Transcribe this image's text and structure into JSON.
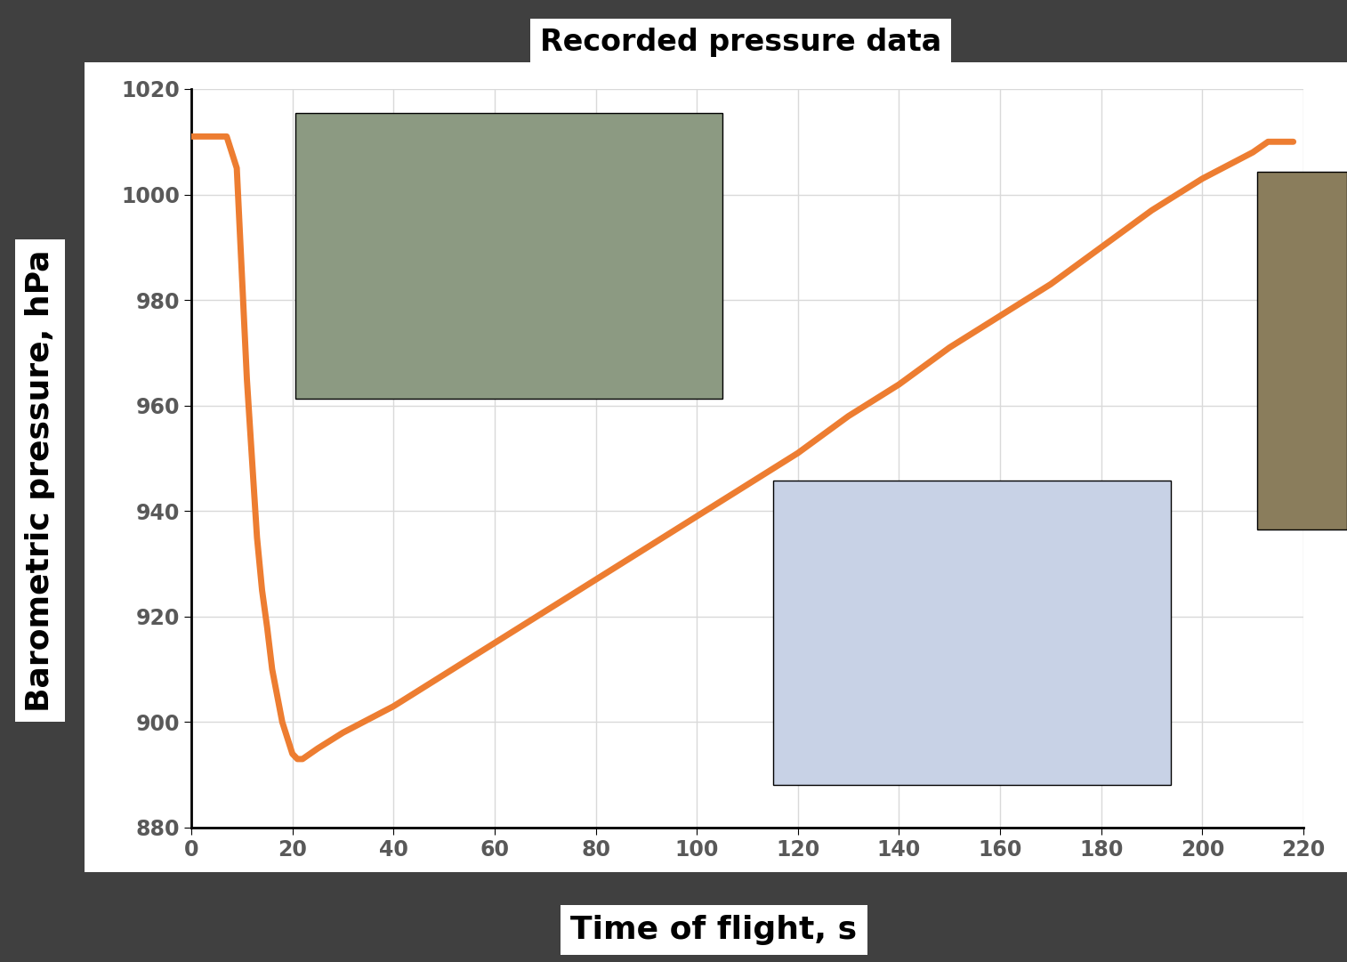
{
  "chart_data": {
    "type": "line",
    "title": "Recorded pressure data",
    "x_label": "Time of flight, s",
    "y_label": "Barometric pressure, hPa",
    "x": [
      0,
      6,
      7,
      8,
      9,
      10,
      11,
      12,
      13,
      14,
      15,
      16,
      17,
      18,
      19,
      20,
      21,
      22,
      25,
      30,
      40,
      50,
      60,
      70,
      80,
      90,
      100,
      110,
      120,
      130,
      140,
      150,
      160,
      170,
      180,
      190,
      200,
      210,
      213,
      218
    ],
    "series": [
      {
        "name": "Barometric pressure",
        "color": "#ed7d31",
        "line_style": "solid",
        "values": [
          1011,
          1011,
          1011,
          1008,
          1005,
          985,
          965,
          950,
          935,
          925,
          918,
          910,
          905,
          900,
          897,
          894,
          893,
          893,
          895,
          898,
          903,
          909,
          915,
          921,
          927,
          933,
          939,
          945,
          951,
          958,
          964,
          971,
          977,
          983,
          990,
          997,
          1003,
          1008,
          1010,
          1010
        ]
      }
    ],
    "xlim": [
      0,
      220
    ],
    "xticks": [
      0,
      20,
      40,
      60,
      80,
      100,
      120,
      140,
      160,
      180,
      200,
      220
    ],
    "ylim": [
      880,
      1020
    ],
    "yticks": [
      880,
      900,
      920,
      940,
      960,
      980,
      1000,
      1020
    ],
    "grid": true
  }
}
